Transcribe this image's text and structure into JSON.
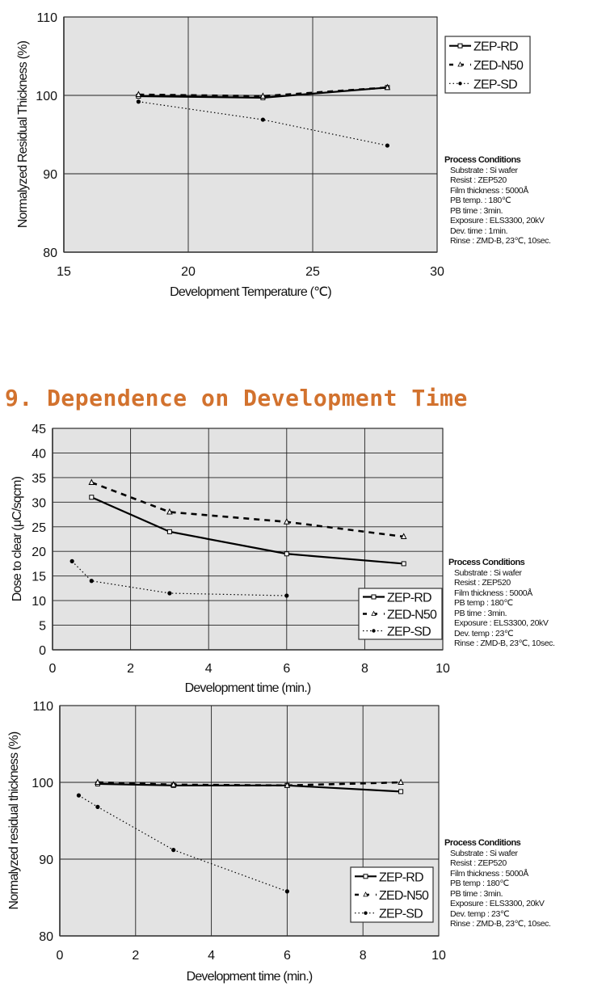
{
  "section_title": "9. Dependence on Development Time",
  "colors": {
    "title": "#d2722e",
    "plot_bg": "#e3e3e3",
    "grid": "#222222",
    "series": "#000000"
  },
  "legend": {
    "items": [
      "ZEP-RD",
      "ZED-N50",
      "ZEP-SD"
    ]
  },
  "process_conditions": [
    {
      "title": "Process Conditions",
      "lines": [
        "Substrate : Si wafer",
        "Resist : ZEP520",
        "Film thickness : 5000Å",
        "PB temp. : 180℃",
        "PB time : 3min.",
        "Exposure : ELS3300, 20kV",
        "Dev. time : 1min.",
        "Rinse : ZMD-B, 23℃, 10sec."
      ]
    },
    {
      "title": "Process Conditions",
      "lines": [
        "Substrate : Si wafer",
        "Resist : ZEP520",
        "Film thickness : 5000Å",
        "PB temp : 180℃",
        "PB time : 3min.",
        "Exposure : ELS3300, 20kV",
        "Dev. temp : 23℃",
        "Rinse : ZMD-B, 23℃, 10sec."
      ]
    },
    {
      "title": "Process Conditions",
      "lines": [
        "Substrate : Si wafer",
        "Resist : ZEP520",
        "Film thickness : 5000Å",
        "PB temp : 180℃",
        "PB time : 3min.",
        "Exposure : ELS3300, 20kV",
        "Dev. temp : 23℃",
        "Rinse : ZMD-B, 23℃, 10sec."
      ]
    }
  ],
  "chart_data": [
    {
      "type": "line",
      "title": "",
      "xlabel": "Development Temperature (℃)",
      "ylabel": "Normalyzed Residual Thickness (%)",
      "xlim": [
        15,
        30
      ],
      "ylim": [
        80,
        110
      ],
      "xticks": [
        15,
        20,
        25,
        30
      ],
      "yticks": [
        80,
        90,
        100,
        110
      ],
      "grid": true,
      "legend_position": "outside-top-right",
      "series": [
        {
          "name": "ZEP-RD",
          "style": "solid",
          "marker": "square",
          "x": [
            18,
            23,
            28
          ],
          "y": [
            99.9,
            99.7,
            101.0
          ]
        },
        {
          "name": "ZED-N50",
          "style": "dashed",
          "marker": "triangle",
          "x": [
            18,
            23,
            28
          ],
          "y": [
            100.1,
            99.9,
            101.0
          ]
        },
        {
          "name": "ZEP-SD",
          "style": "dotted",
          "marker": "dot",
          "x": [
            18,
            23,
            28
          ],
          "y": [
            99.2,
            96.9,
            93.6
          ]
        }
      ]
    },
    {
      "type": "line",
      "title": "",
      "xlabel": "Development time (min.)",
      "ylabel": "Dose to clear (μC/sqcm)",
      "xlim": [
        0,
        10
      ],
      "ylim": [
        0,
        45
      ],
      "xticks": [
        0,
        2,
        4,
        6,
        8,
        10
      ],
      "yticks": [
        0,
        5,
        10,
        15,
        20,
        25,
        30,
        35,
        40,
        45
      ],
      "grid": true,
      "legend_position": "inside-bottom-right",
      "series": [
        {
          "name": "ZEP-RD",
          "style": "solid",
          "marker": "square",
          "x": [
            1,
            3,
            6,
            9
          ],
          "y": [
            31,
            24,
            19.5,
            17.5
          ]
        },
        {
          "name": "ZED-N50",
          "style": "dashed",
          "marker": "triangle",
          "x": [
            1,
            3,
            6,
            9
          ],
          "y": [
            34,
            28,
            26,
            23
          ]
        },
        {
          "name": "ZEP-SD",
          "style": "dotted",
          "marker": "dot",
          "x": [
            0.5,
            1,
            3,
            6
          ],
          "y": [
            18,
            14,
            11.5,
            11
          ]
        }
      ]
    },
    {
      "type": "line",
      "title": "",
      "xlabel": "Development time (min.)",
      "ylabel": "Normalyzed residual thickness (%)",
      "xlim": [
        0,
        10
      ],
      "ylim": [
        80,
        110
      ],
      "xticks": [
        0,
        2,
        4,
        6,
        8,
        10
      ],
      "yticks": [
        80,
        90,
        100,
        110
      ],
      "grid": true,
      "legend_position": "inside-bottom-right",
      "series": [
        {
          "name": "ZEP-RD",
          "style": "solid",
          "marker": "square",
          "x": [
            1,
            3,
            6,
            9
          ],
          "y": [
            99.8,
            99.6,
            99.6,
            98.8
          ]
        },
        {
          "name": "ZED-N50",
          "style": "dashed",
          "marker": "triangle",
          "x": [
            1,
            3,
            6,
            9
          ],
          "y": [
            100.0,
            99.7,
            99.6,
            100.0
          ]
        },
        {
          "name": "ZEP-SD",
          "style": "dotted",
          "marker": "dot",
          "x": [
            0.5,
            1,
            3,
            6
          ],
          "y": [
            98.3,
            96.8,
            91.2,
            85.8
          ]
        }
      ]
    }
  ]
}
